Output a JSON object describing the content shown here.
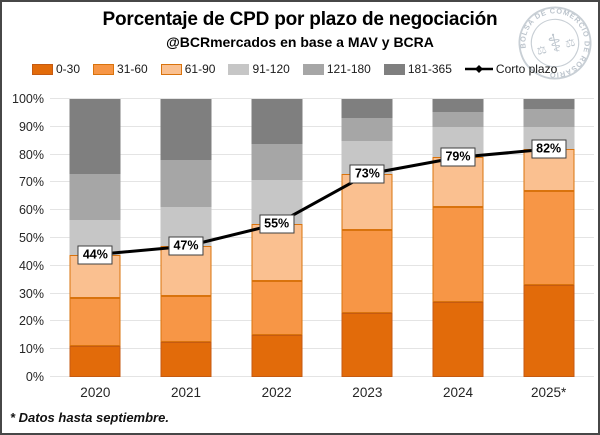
{
  "header": {
    "title": "Porcentaje de CPD por plazo de negociación",
    "subtitle": "@BCRmercados en base a MAV y BCRA",
    "logo_text": "BOLSA DE COMERCIO DE ROSARIO"
  },
  "footnote": "* Datos hasta septiembre.",
  "colors": {
    "frame_border": "#474747",
    "gridline": "#e4e4e4",
    "label_box_border": "#3f3f3f",
    "logo_gray": "#bcc4cc",
    "line": "#000000"
  },
  "chart_data": {
    "type": "bar",
    "stacked": true,
    "grid": true,
    "legend_position": "top",
    "ylim": [
      0,
      100
    ],
    "yticks": [
      "0%",
      "10%",
      "20%",
      "30%",
      "40%",
      "50%",
      "60%",
      "70%",
      "80%",
      "90%",
      "100%"
    ],
    "categories": [
      "2020",
      "2021",
      "2022",
      "2023",
      "2024",
      "2025*"
    ],
    "series": [
      {
        "name": "0-30",
        "color": "#e26b0a",
        "border": "#c55a11",
        "values": [
          11,
          12.5,
          15,
          23,
          27,
          33
        ]
      },
      {
        "name": "31-60",
        "color": "#f79646",
        "border": "#d9730d",
        "values": [
          17.5,
          16.5,
          19.5,
          30,
          34,
          34
        ]
      },
      {
        "name": "61-90",
        "color": "#fac090",
        "border": "#d9730d",
        "values": [
          15.5,
          18,
          20.5,
          20,
          18,
          15
        ]
      },
      {
        "name": "91-120",
        "color": "#c6c6c6",
        "border": "",
        "values": [
          12.5,
          14,
          16,
          12,
          11,
          8
        ]
      },
      {
        "name": "121-180",
        "color": "#a6a6a6",
        "border": "",
        "values": [
          16.5,
          17,
          13,
          8,
          5.5,
          6.5
        ]
      },
      {
        "name": "181-365",
        "color": "#7f7f7f",
        "border": "",
        "values": [
          27,
          22,
          16,
          7,
          4.5,
          3.5
        ]
      }
    ],
    "line_series": {
      "name": "Corto plazo",
      "color": "#000000",
      "values": [
        44,
        47,
        55,
        73,
        79,
        82
      ],
      "labels": [
        "44%",
        "47%",
        "55%",
        "73%",
        "79%",
        "82%"
      ]
    }
  }
}
